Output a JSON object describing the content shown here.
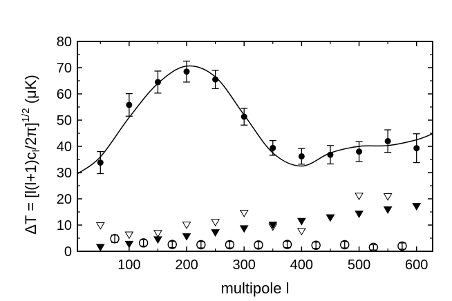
{
  "chart_data": {
    "type": "scatter",
    "xlabel": "multipole l",
    "ylabel": {
      "prefix": "ΔT = [l(l+1)c",
      "sub": "l",
      "middle": "/2π]",
      "sup": "1/2",
      "suffix": " (μK)"
    },
    "xlim": [
      10,
      628
    ],
    "ylim": [
      0,
      80
    ],
    "x_ticks": [
      100,
      200,
      300,
      400,
      500,
      600
    ],
    "y_ticks": [
      0,
      10,
      20,
      30,
      40,
      50,
      60,
      70,
      80
    ],
    "series": [
      {
        "marker": "filled-circle",
        "error_bars": true,
        "points": [
          {
            "x": 50,
            "y": 33.8,
            "err": 4.2
          },
          {
            "x": 100,
            "y": 55.8,
            "err": 4.3
          },
          {
            "x": 150,
            "y": 64.5,
            "err": 4.2
          },
          {
            "x": 200,
            "y": 68.5,
            "err": 4.0
          },
          {
            "x": 250,
            "y": 65.5,
            "err": 3.5
          },
          {
            "x": 300,
            "y": 51.3,
            "err": 3.2
          },
          {
            "x": 350,
            "y": 39.4,
            "err": 2.8
          },
          {
            "x": 400,
            "y": 36.2,
            "err": 3.0
          },
          {
            "x": 450,
            "y": 36.8,
            "err": 3.5
          },
          {
            "x": 500,
            "y": 38.0,
            "err": 3.8
          },
          {
            "x": 550,
            "y": 42.0,
            "err": 4.3
          },
          {
            "x": 600,
            "y": 39.3,
            "err": 5.5
          }
        ]
      },
      {
        "marker": "open-circle",
        "error_bars": true,
        "points": [
          {
            "x": 75,
            "y": 4.8,
            "err": 1.4
          },
          {
            "x": 125,
            "y": 3.2,
            "err": 1.2
          },
          {
            "x": 175,
            "y": 2.6,
            "err": 1.2
          },
          {
            "x": 225,
            "y": 2.5,
            "err": 1.2
          },
          {
            "x": 275,
            "y": 2.5,
            "err": 1.2
          },
          {
            "x": 325,
            "y": 2.4,
            "err": 1.2
          },
          {
            "x": 375,
            "y": 2.6,
            "err": 1.2
          },
          {
            "x": 425,
            "y": 2.3,
            "err": 1.2
          },
          {
            "x": 475,
            "y": 2.5,
            "err": 1.2
          },
          {
            "x": 525,
            "y": 1.5,
            "err": 1.0
          },
          {
            "x": 575,
            "y": 2.0,
            "err": 1.2
          }
        ]
      },
      {
        "marker": "open-triangle-down",
        "points": [
          {
            "x": 50,
            "y": 9.8
          },
          {
            "x": 100,
            "y": 6.2
          },
          {
            "x": 150,
            "y": 6.8
          },
          {
            "x": 200,
            "y": 10.0
          },
          {
            "x": 250,
            "y": 11.0
          },
          {
            "x": 300,
            "y": 14.5
          },
          {
            "x": 350,
            "y": 9.3
          },
          {
            "x": 400,
            "y": 7.6
          },
          {
            "x": 450,
            "y": 12.8
          },
          {
            "x": 500,
            "y": 21.0
          },
          {
            "x": 550,
            "y": 20.8
          }
        ]
      },
      {
        "marker": "filled-triangle-down",
        "points": [
          {
            "x": 50,
            "y": 1.5
          },
          {
            "x": 100,
            "y": 2.7
          },
          {
            "x": 150,
            "y": 4.4
          },
          {
            "x": 200,
            "y": 5.6
          },
          {
            "x": 250,
            "y": 7.1
          },
          {
            "x": 300,
            "y": 8.6
          },
          {
            "x": 350,
            "y": 10.0
          },
          {
            "x": 400,
            "y": 11.4
          },
          {
            "x": 450,
            "y": 12.8
          },
          {
            "x": 500,
            "y": 14.2
          },
          {
            "x": 550,
            "y": 15.8
          },
          {
            "x": 600,
            "y": 17.1
          }
        ]
      },
      {
        "marker": "line",
        "points": [
          {
            "x": 10,
            "y": 29.5
          },
          {
            "x": 50,
            "y": 36
          },
          {
            "x": 100,
            "y": 51
          },
          {
            "x": 150,
            "y": 64
          },
          {
            "x": 200,
            "y": 70.6
          },
          {
            "x": 250,
            "y": 66.5
          },
          {
            "x": 300,
            "y": 52
          },
          {
            "x": 350,
            "y": 37.5
          },
          {
            "x": 400,
            "y": 32.5
          },
          {
            "x": 450,
            "y": 37.5
          },
          {
            "x": 500,
            "y": 40.0
          },
          {
            "x": 550,
            "y": 40.3
          },
          {
            "x": 600,
            "y": 42.5
          },
          {
            "x": 628,
            "y": 44.8
          }
        ]
      }
    ]
  }
}
